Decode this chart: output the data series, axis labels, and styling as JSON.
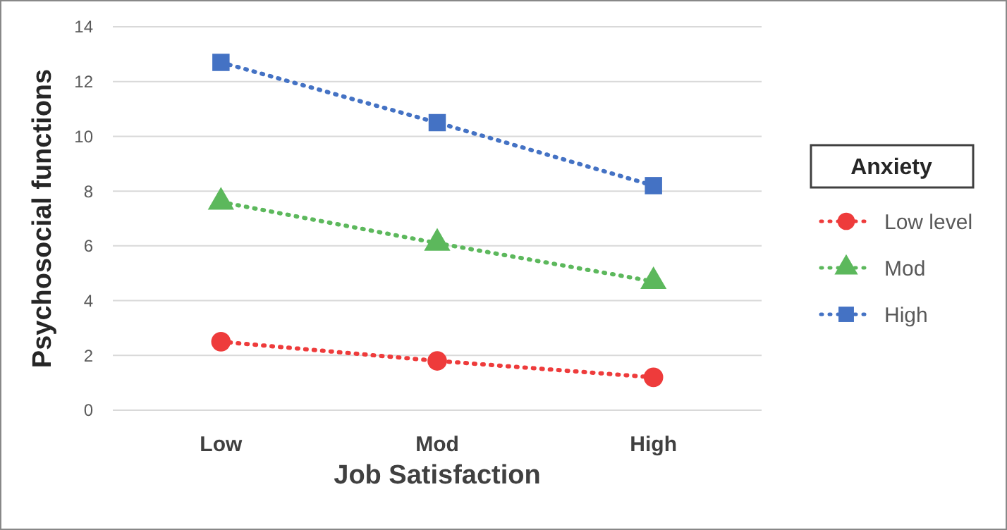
{
  "chart_data": {
    "type": "line",
    "xlabel": "Job Satisfaction",
    "ylabel": "Psychosocial functions",
    "legend_title": "Anxiety",
    "categories": [
      "Low",
      "Mod",
      "High"
    ],
    "series": [
      {
        "name": "Low level",
        "color": "#ee3b3b",
        "values": [
          2.5,
          1.8,
          1.2
        ],
        "marker": "circle"
      },
      {
        "name": "Mod",
        "color": "#5cb85c",
        "values": [
          7.6,
          6.1,
          4.7
        ],
        "marker": "triangle"
      },
      {
        "name": "High",
        "color": "#4472c4",
        "values": [
          12.7,
          10.5,
          8.2
        ],
        "marker": "square"
      }
    ],
    "ylim": [
      0,
      14
    ],
    "yticks": [
      0,
      2,
      4,
      6,
      8,
      10,
      12,
      14
    ],
    "grid": "y",
    "legend": "right",
    "line_style": "dotted"
  }
}
